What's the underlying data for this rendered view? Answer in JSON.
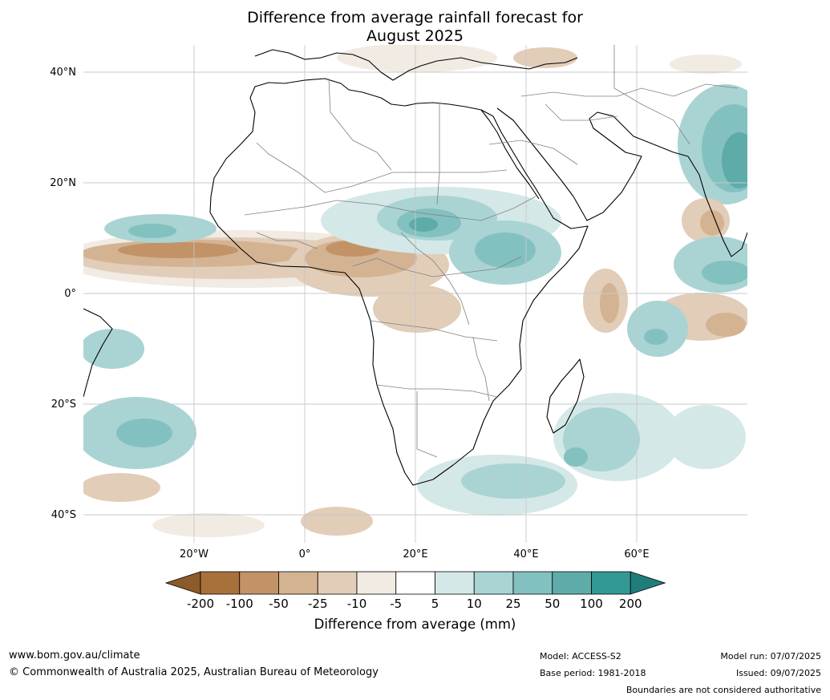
{
  "title": {
    "line1": "Difference from average rainfall forecast for",
    "line2": "August 2025"
  },
  "map": {
    "lat_labels": [
      "40°N",
      "20°N",
      "0°",
      "20°S",
      "40°S"
    ],
    "lon_labels": [
      "20°W",
      "0°",
      "20°E",
      "40°E",
      "60°E"
    ],
    "lat_values": [
      40,
      20,
      0,
      -20,
      -40
    ],
    "lon_values": [
      -20,
      0,
      20,
      40,
      60
    ]
  },
  "colorbar": {
    "title": "Difference from average (mm)",
    "labels": [
      "-200",
      "-100",
      "-50",
      "-25",
      "-10",
      "-5",
      "5",
      "10",
      "25",
      "50",
      "100",
      "200"
    ],
    "colors": [
      "#a8703a",
      "#c29367",
      "#d4b393",
      "#e2cdb9",
      "#f1ebe3",
      "#ffffff",
      "#d4e8e7",
      "#a9d4d3",
      "#83c1c0",
      "#5eacaa",
      "#339995"
    ],
    "under_color": "#8c5a2b",
    "over_color": "#1f7e7a"
  },
  "footer": {
    "website": "www.bom.gov.au/climate",
    "copyright": "© Commonwealth of Australia 2025, Australian Bureau of Meteorology",
    "model": "Model: ACCESS-S2",
    "base_period": "Base period: 1981-2018",
    "model_run": "Model run: 07/07/2025",
    "issued": "Issued: 09/07/2025",
    "disclaimer": "Boundaries are not considered authoritative"
  }
}
